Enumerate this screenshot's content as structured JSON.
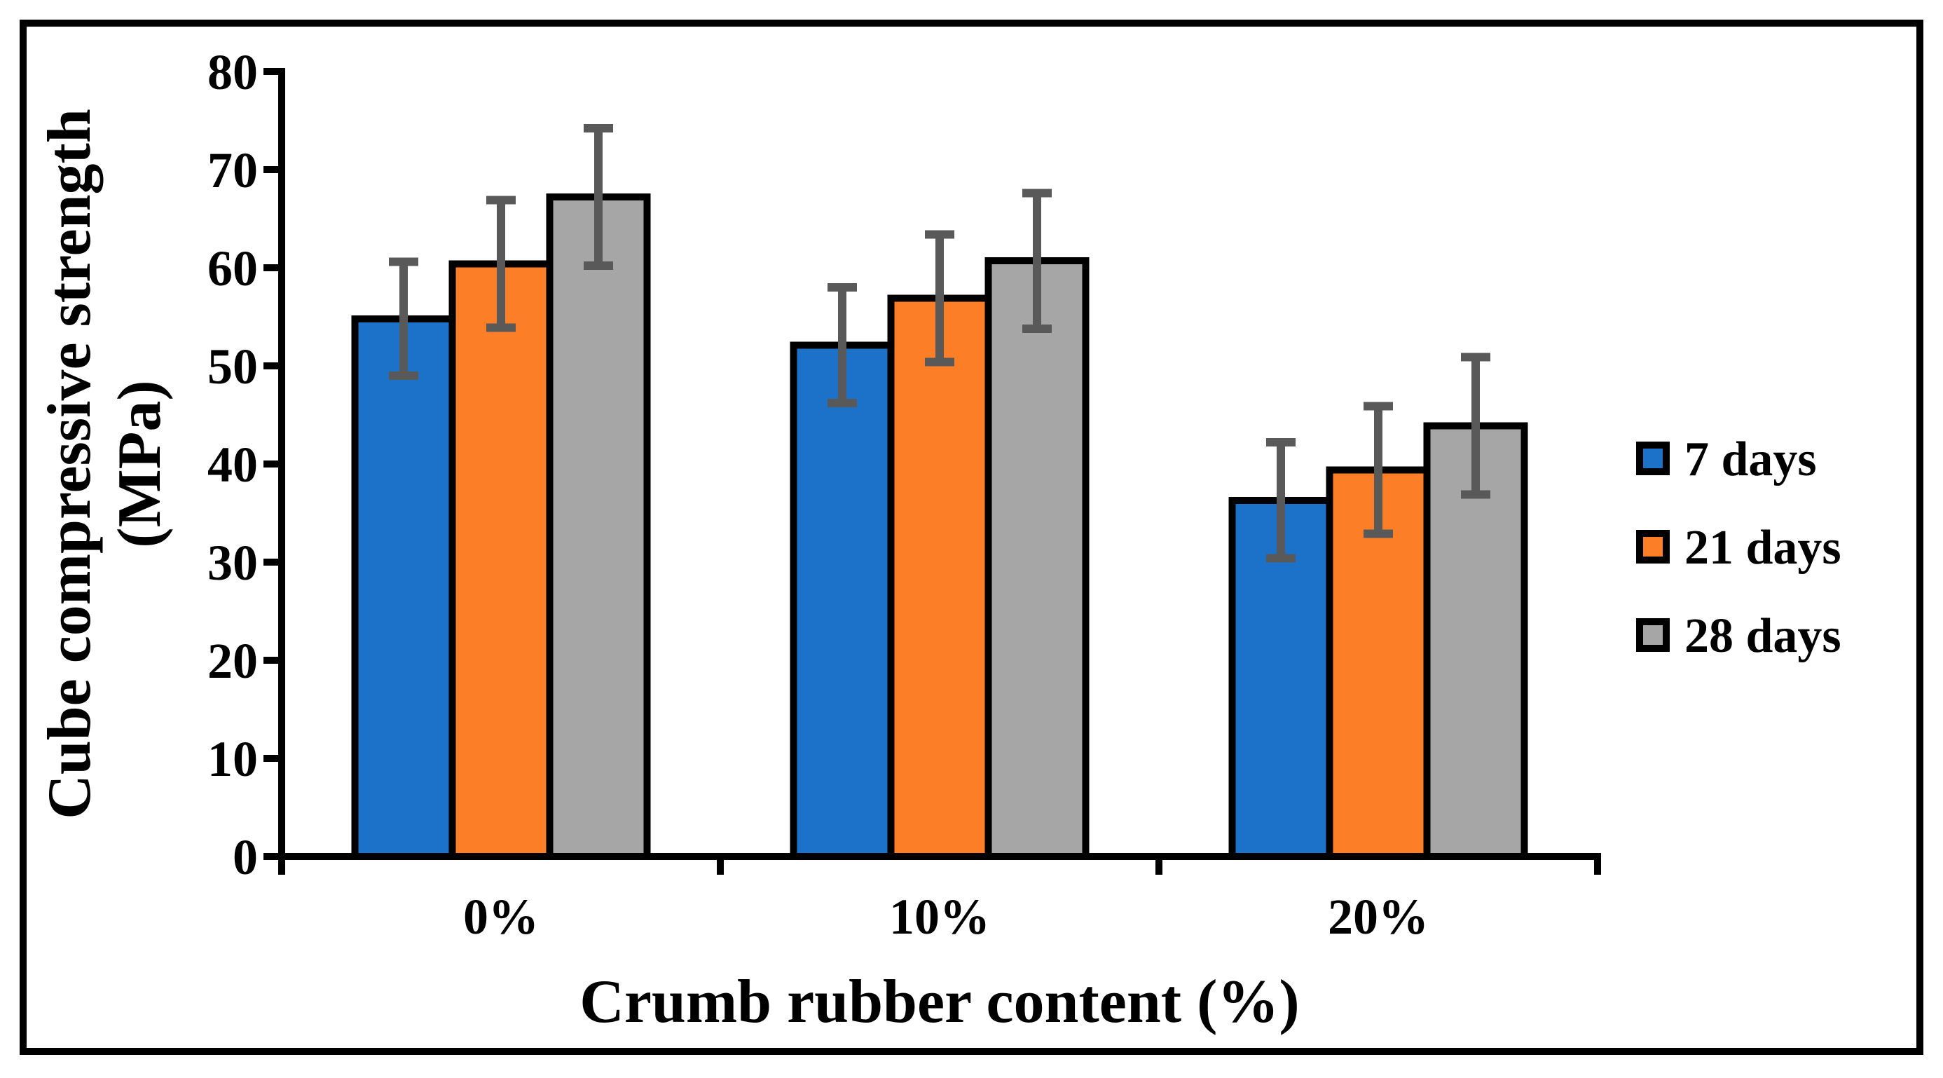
{
  "figure": {
    "background_color": "#FFFFFF",
    "frame_color": "#000000"
  },
  "chart_data": {
    "type": "bar",
    "title": "",
    "xlabel": "Crumb rubber content (%)",
    "ylabel": "Cube compressive strength (MPa)",
    "ylabel_lines": [
      "Cube compressive strength",
      "(MPa)"
    ],
    "categories": [
      "0%",
      "10%",
      "20%"
    ],
    "series": [
      {
        "name": "7 days",
        "color": "#1B72C8",
        "values": [
          54.8,
          52.1,
          36.3
        ],
        "errors": [
          5.8,
          5.9,
          5.9
        ]
      },
      {
        "name": "21 days",
        "color": "#FC7E27",
        "values": [
          60.4,
          56.9,
          39.4
        ],
        "errors": [
          6.5,
          6.5,
          6.5
        ]
      },
      {
        "name": "28 days",
        "color": "#A6A6A6",
        "values": [
          67.2,
          60.7,
          43.9
        ],
        "errors": [
          7.0,
          6.9,
          7.0
        ]
      }
    ],
    "y_axis": {
      "min": 0,
      "max": 80,
      "tick_step": 10,
      "tick_labels": [
        "0",
        "10",
        "20",
        "30",
        "40",
        "50",
        "60",
        "70",
        "80"
      ]
    },
    "x_axis": {
      "tick_labels": [
        "0%",
        "10%",
        "20%"
      ]
    },
    "legend_position": "right",
    "grid": false,
    "bar_outline_color": "#000000",
    "error_bar_color": "#595959"
  }
}
